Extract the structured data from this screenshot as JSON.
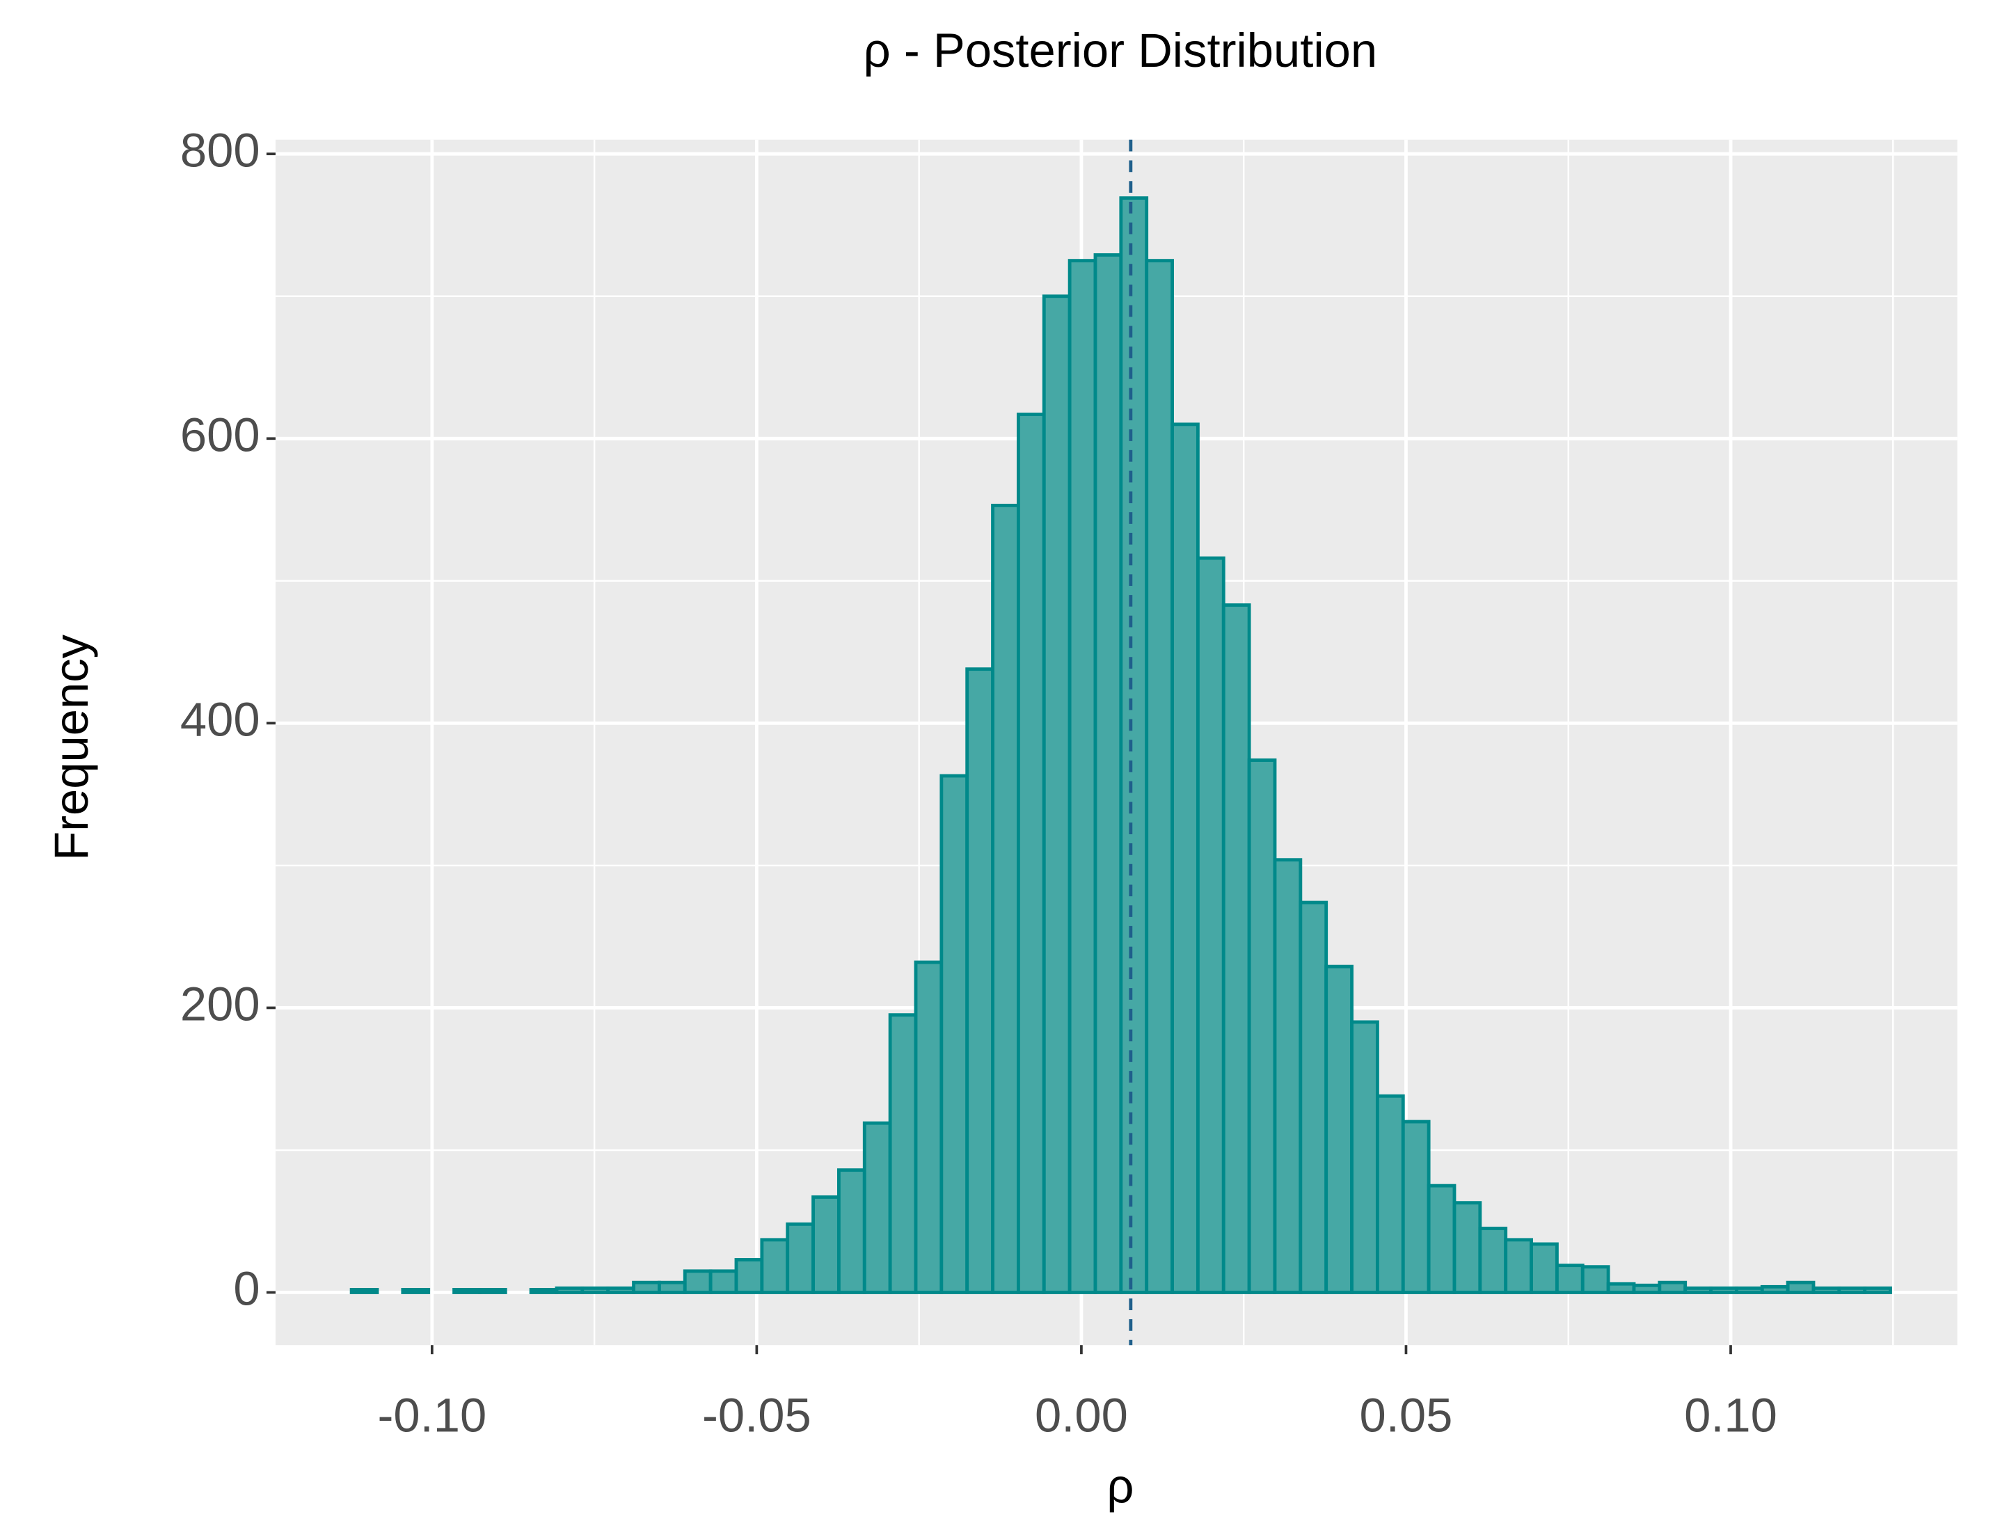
{
  "chart_data": {
    "type": "histogram",
    "title": "ρ - Posterior Distribution",
    "x_label": "ρ",
    "y_label": "Frequency",
    "bins": [
      -0.1124,
      -0.10845,
      -0.1045,
      -0.10055,
      -0.0966,
      -0.09265,
      -0.0887,
      -0.08475,
      -0.0808,
      -0.07685,
      -0.0729,
      -0.06895,
      -0.065,
      -0.06105,
      -0.0571,
      -0.05315,
      -0.0492,
      -0.04525,
      -0.0413,
      -0.03735,
      -0.0334,
      -0.02945,
      -0.0255,
      -0.02155,
      -0.0176,
      -0.01365,
      -0.0097,
      -0.00575,
      -0.0018,
      0.00215,
      0.0061,
      0.01005,
      0.014,
      0.01795,
      0.0219,
      0.02585,
      0.0298,
      0.03375,
      0.0377,
      0.04165,
      0.0456,
      0.04955,
      0.0535,
      0.05745,
      0.0614,
      0.06535,
      0.0693,
      0.07325,
      0.0772,
      0.08115,
      0.0851,
      0.08905,
      0.093,
      0.09695,
      0.1009,
      0.10485,
      0.1088,
      0.11275,
      0.1167,
      0.12065,
      0.1246
    ],
    "values": [
      2,
      0,
      2,
      0,
      2,
      2,
      0,
      2,
      3,
      3,
      3,
      7,
      7,
      15,
      15,
      23,
      37,
      48,
      67,
      86,
      119,
      195,
      232,
      363,
      438,
      553,
      617,
      700,
      725,
      729,
      769,
      725,
      610,
      516,
      483,
      374,
      304,
      274,
      229,
      190,
      138,
      120,
      75,
      63,
      45,
      37,
      34,
      19,
      18,
      6,
      5,
      7,
      3,
      3,
      3,
      4,
      7,
      3,
      3,
      3
    ],
    "color": "#46a8a5",
    "edge_color": "#00898a",
    "vline": 0.0076,
    "vline_color": "#1f5f8b",
    "xlim": [
      -0.1241,
      0.1349
    ],
    "ylim": [
      -37,
      810
    ],
    "xticks": [
      {
        "value": -0.1,
        "label": "-0.10"
      },
      -0.05,
      {
        "value": 0,
        "label": "0.00"
      },
      0.05,
      {
        "value": 0.1,
        "label": "0.10"
      }
    ],
    "yticks": [
      0,
      200,
      400,
      600,
      800
    ],
    "xminor": [
      -0.075,
      -0.025,
      0.025,
      0.075,
      0.125
    ],
    "yminor": [
      100,
      300,
      500,
      700
    ],
    "grid": true
  }
}
